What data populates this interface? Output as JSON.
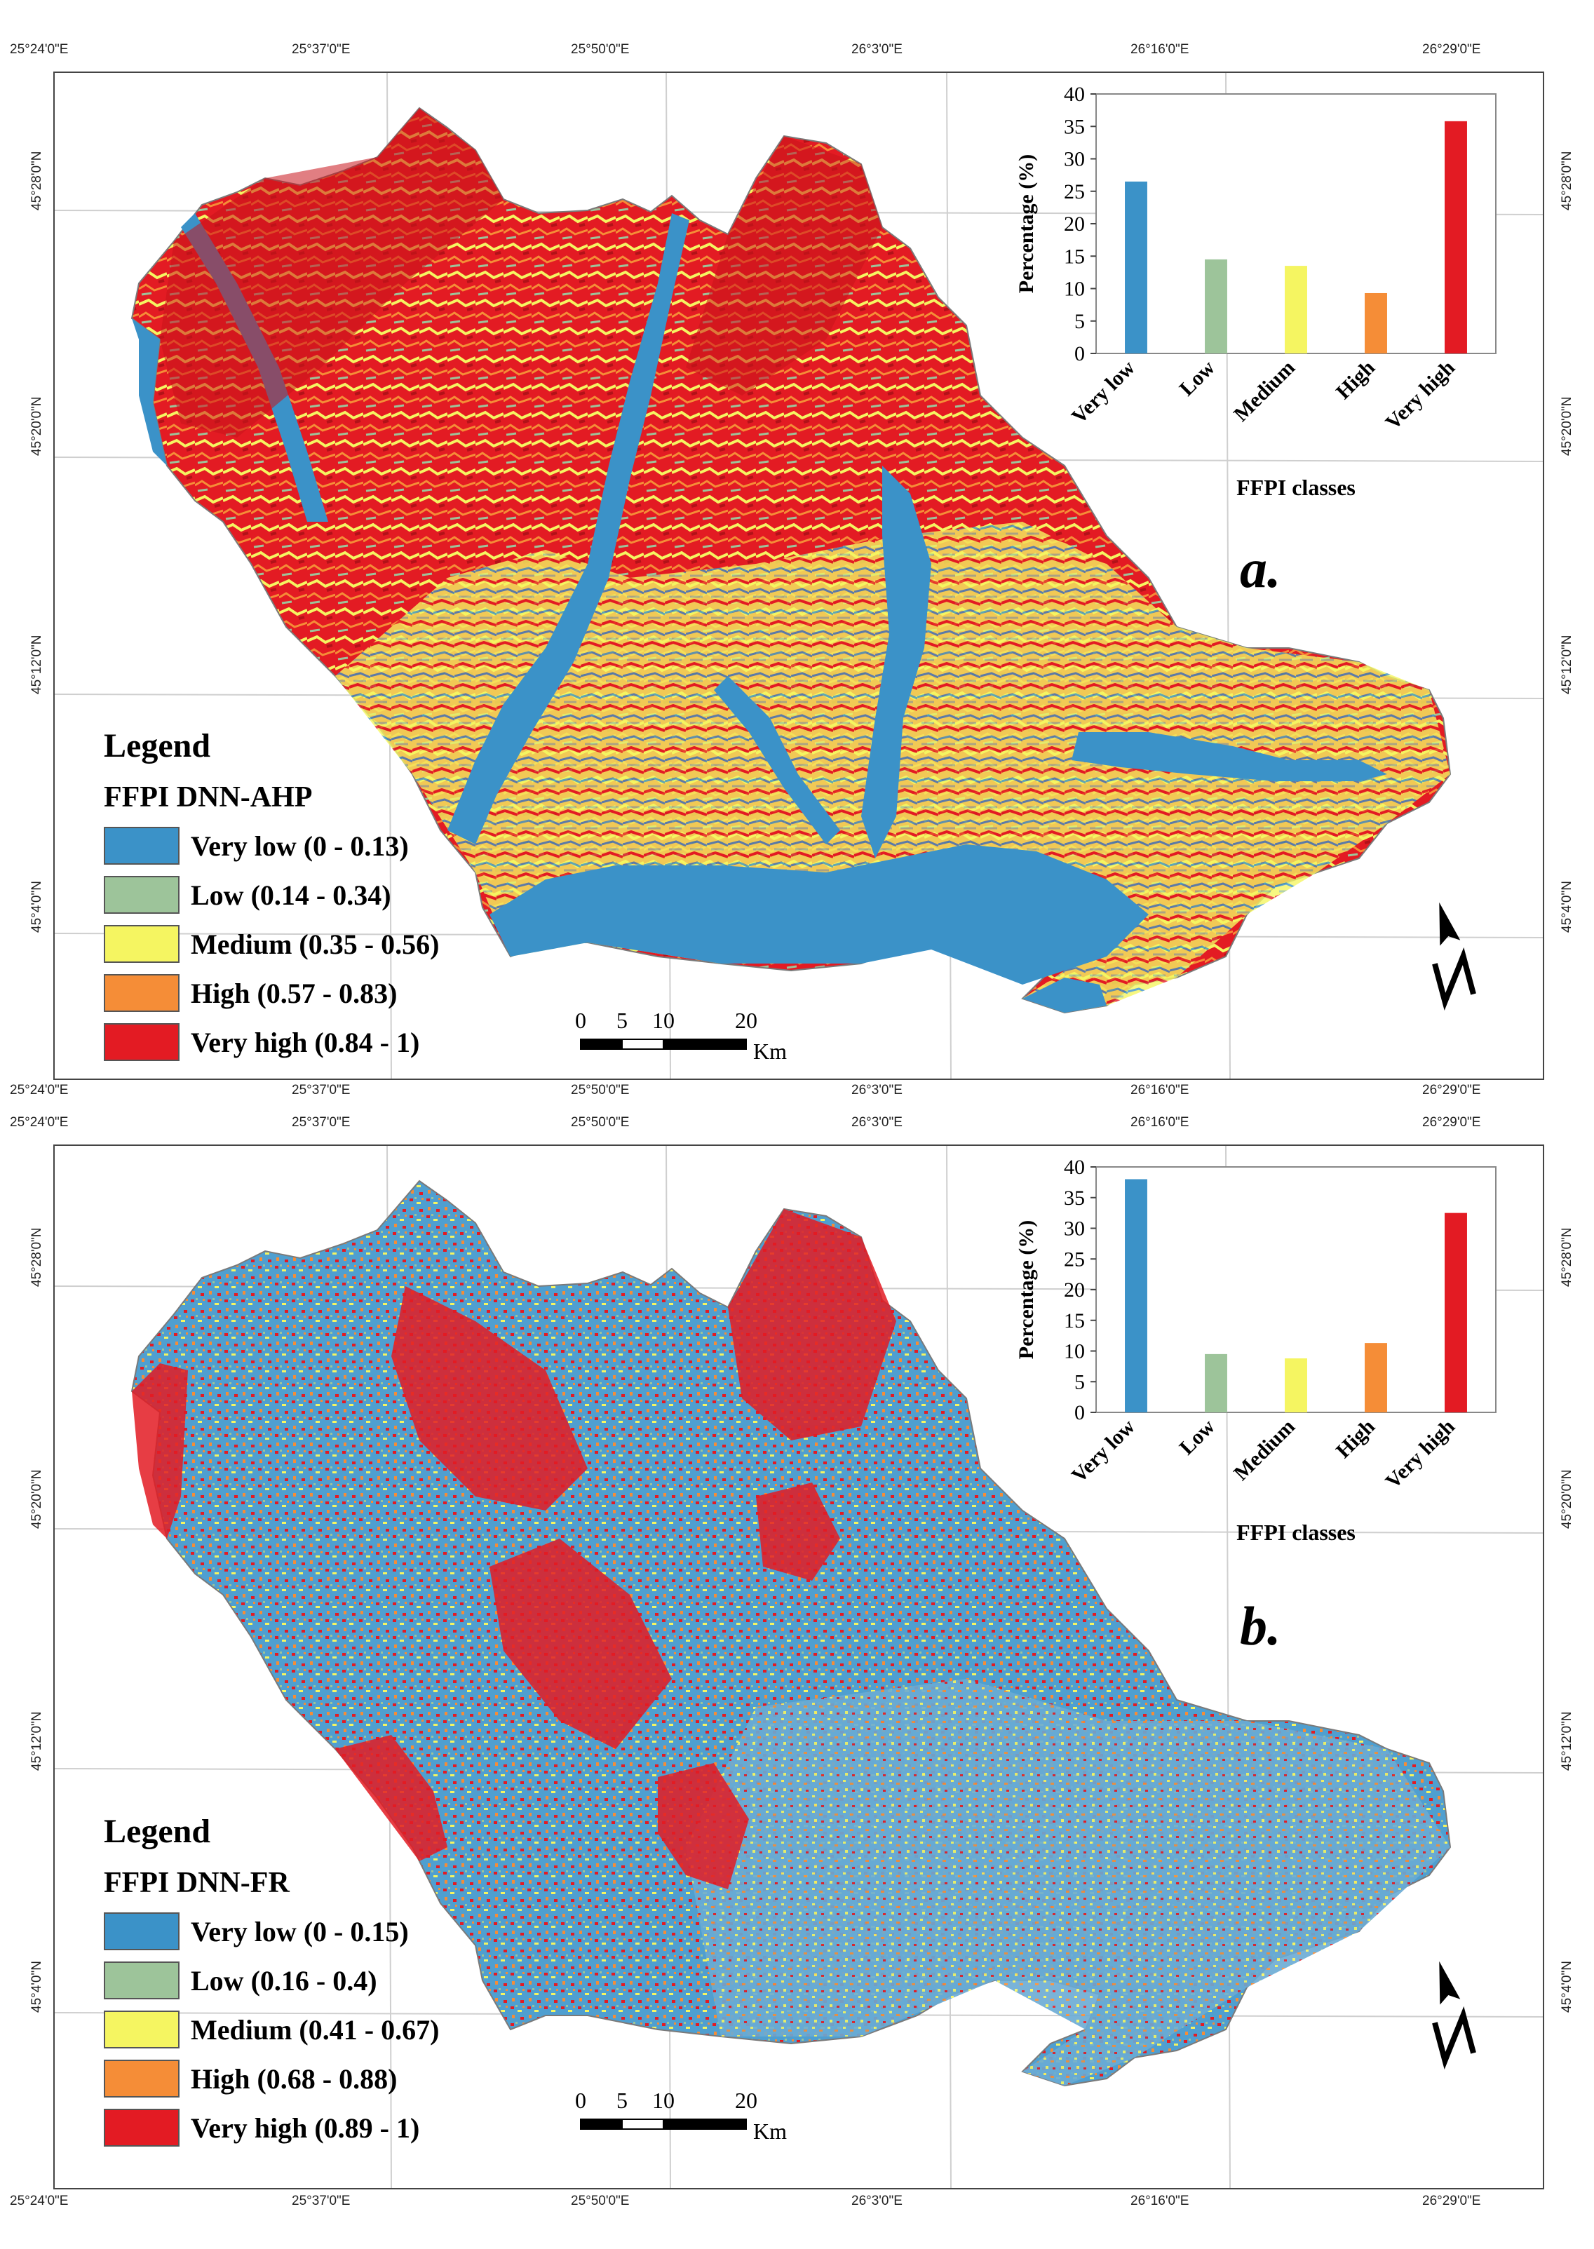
{
  "lon_labels": [
    "25°24'0\"E",
    "25°37'0\"E",
    "25°50'0\"E",
    "26°3'0\"E",
    "26°16'0\"E",
    "26°29'0\"E"
  ],
  "lat_labels": [
    "45°28'0\"N",
    "45°20'0\"N",
    "45°12'0\"N",
    "45°4'0\"N"
  ],
  "colors": {
    "very_low": "#3b92c8",
    "low": "#9dc49a",
    "medium": "#f5f561",
    "high": "#f58d37",
    "very_high": "#e31b23"
  },
  "panels": [
    {
      "label": "a.",
      "legend_title": "Legend",
      "legend_subtitle": "FFPI DNN-AHP",
      "legend_items": [
        {
          "label": "Very low (0 - 0.13)",
          "color": "#3b92c8"
        },
        {
          "label": "Low (0.14 - 0.34)",
          "color": "#9dc49a"
        },
        {
          "label": "Medium (0.35 - 0.56)",
          "color": "#f5f561"
        },
        {
          "label": "High (0.57 - 0.83)",
          "color": "#f58d37"
        },
        {
          "label": "Very high (0.84 - 1)",
          "color": "#e31b23"
        }
      ],
      "scale_ticks": [
        "0",
        "5",
        "10",
        "20"
      ],
      "scale_unit": "Km"
    },
    {
      "label": "b.",
      "legend_title": "Legend",
      "legend_subtitle": "FFPI DNN-FR",
      "legend_items": [
        {
          "label": "Very low (0 - 0.15)",
          "color": "#3b92c8"
        },
        {
          "label": "Low (0.16 - 0.4)",
          "color": "#9dc49a"
        },
        {
          "label": "Medium (0.41 - 0.67)",
          "color": "#f5f561"
        },
        {
          "label": "High (0.68 - 0.88)",
          "color": "#f58d37"
        },
        {
          "label": "Very high (0.89 - 1)",
          "color": "#e31b23"
        }
      ],
      "scale_ticks": [
        "0",
        "5",
        "10",
        "20"
      ],
      "scale_unit": "Km"
    }
  ],
  "chart_data": [
    {
      "type": "bar",
      "title": "",
      "categories": [
        "Very low",
        "Low",
        "Medium",
        "High",
        "Very high"
      ],
      "values": [
        26.5,
        14.5,
        13.5,
        9.3,
        35.8
      ],
      "colors": [
        "#3b92c8",
        "#9dc49a",
        "#f5f561",
        "#f58d37",
        "#e31b23"
      ],
      "xlabel": "FFPI classes",
      "ylabel": "Percentage (%)",
      "ylim": [
        0,
        40
      ],
      "yticks": [
        "0",
        "5",
        "10",
        "15",
        "20",
        "25",
        "30",
        "35",
        "40"
      ]
    },
    {
      "type": "bar",
      "title": "",
      "categories": [
        "Very low",
        "Low",
        "Medium",
        "High",
        "Very high"
      ],
      "values": [
        38,
        9.5,
        8.8,
        11.3,
        32.5
      ],
      "colors": [
        "#3b92c8",
        "#9dc49a",
        "#f5f561",
        "#f58d37",
        "#e31b23"
      ],
      "xlabel": "FFPI classes",
      "ylabel": "Percentage (%)",
      "ylim": [
        0,
        40
      ],
      "yticks": [
        "0",
        "5",
        "10",
        "15",
        "20",
        "25",
        "30",
        "35",
        "40"
      ]
    }
  ]
}
